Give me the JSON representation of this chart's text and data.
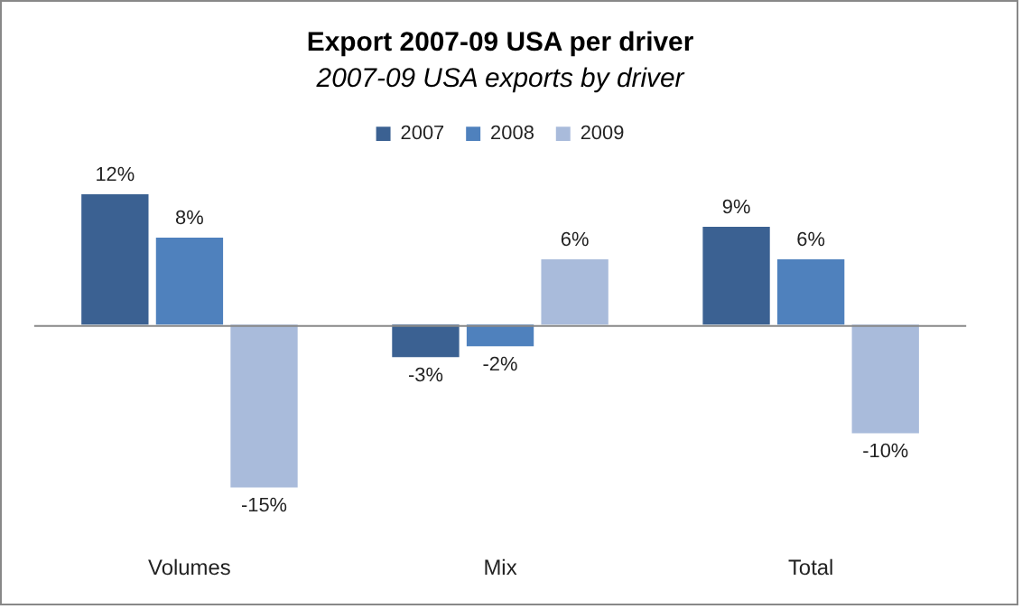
{
  "chart_data": {
    "type": "bar",
    "title": "Export 2007-09 USA per driver",
    "subtitle": "2007-09 USA exports by driver",
    "categories": [
      "Volumes",
      "Mix",
      "Total"
    ],
    "series": [
      {
        "name": "2007",
        "color": "#3b6192",
        "values": [
          12,
          -3,
          9
        ],
        "value_labels": [
          "12%",
          "-3%",
          "9%"
        ]
      },
      {
        "name": "2008",
        "color": "#4f81bd",
        "values": [
          8,
          -2,
          6
        ],
        "value_labels": [
          "8%",
          "-2%",
          "6%"
        ]
      },
      {
        "name": "2009",
        "color": "#a9bbdb",
        "values": [
          -15,
          6,
          -10
        ],
        "value_labels": [
          "-15%",
          "6%",
          "-10%"
        ]
      }
    ],
    "legend": "top"
  }
}
